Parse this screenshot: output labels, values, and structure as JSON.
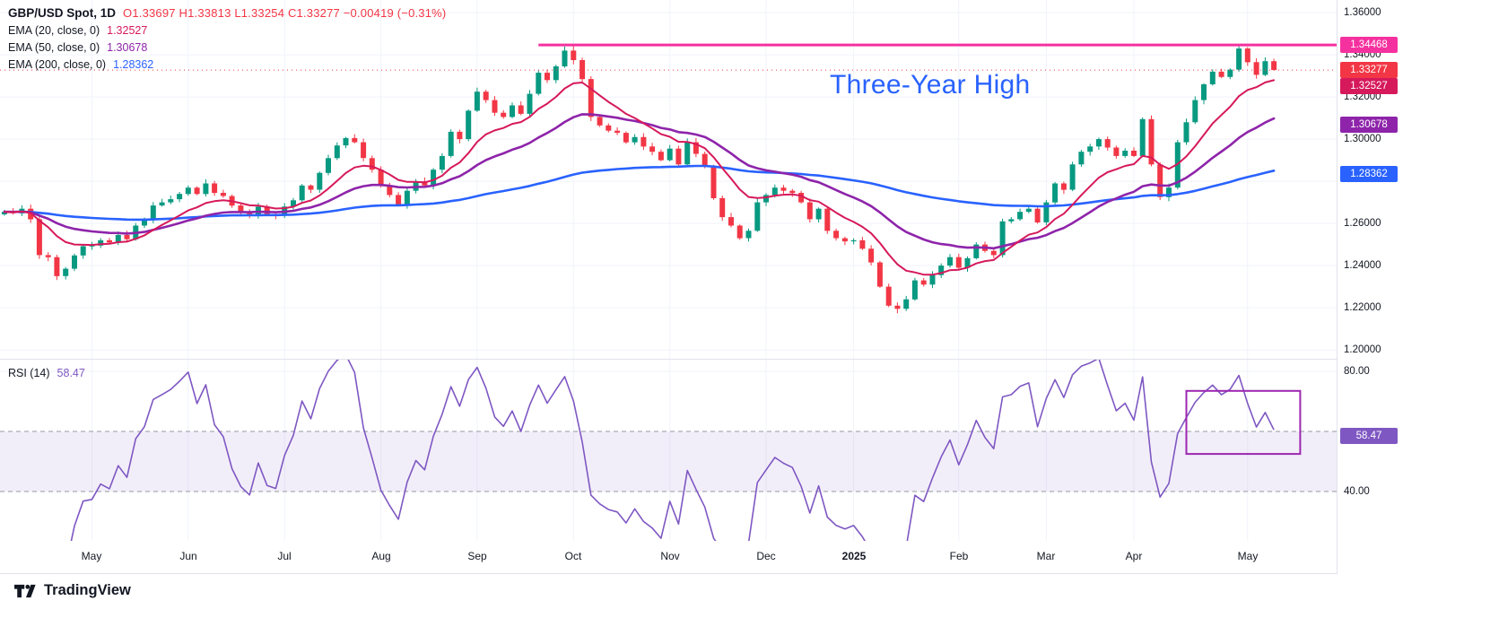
{
  "legend": {
    "title": "GBP/USD Spot, 1D",
    "ohlc": "O1.33697 H1.33813 L1.33254 C1.33277 −0.00419 (−0.31%)",
    "ohlc_color": "#f23645",
    "emas": [
      {
        "label": "EMA (20, close, 0)",
        "period": 20,
        "value": "1.32527",
        "color": "#d6195b"
      },
      {
        "label": "EMA (50, close, 0)",
        "period": 50,
        "value": "1.30678",
        "color": "#8e24aa"
      },
      {
        "label": "EMA (200, close, 0)",
        "period": 200,
        "value": "1.28362",
        "color": "#2962ff"
      }
    ]
  },
  "rsi_legend": {
    "label": "RSI (14)",
    "period": 14,
    "value": "58.47",
    "color": "#7e57c2"
  },
  "annotation": {
    "text": "Three-Year High",
    "color": "#2962ff"
  },
  "footer": {
    "brand": "TradingView"
  },
  "price_axis": {
    "labels": [
      {
        "text": "1.36000",
        "price": 1.36
      },
      {
        "text": "1.34000",
        "price": 1.34
      },
      {
        "text": "1.32000",
        "price": 1.32
      },
      {
        "text": "1.30000",
        "price": 1.3
      },
      {
        "text": "1.26000",
        "price": 1.26
      },
      {
        "text": "1.24000",
        "price": 1.24
      },
      {
        "text": "1.22000",
        "price": 1.22
      },
      {
        "text": "1.20000",
        "price": 1.2
      }
    ],
    "badges": [
      {
        "text": "1.34468",
        "price": 1.34468,
        "bg": "#f5319f",
        "name": "resistance-price-badge"
      },
      {
        "text": "1.33277",
        "price": 1.33277,
        "bg": "#f23645",
        "name": "last-price-badge"
      },
      {
        "text": "1.32527",
        "price": 1.32527,
        "bg": "#d6195b",
        "name": "ema20-price-badge"
      },
      {
        "text": "1.30678",
        "price": 1.30678,
        "bg": "#8e24aa",
        "name": "ema50-price-badge"
      },
      {
        "text": "1.28362",
        "price": 1.28362,
        "bg": "#2962ff",
        "name": "ema200-price-badge"
      }
    ]
  },
  "rsi_axis": {
    "labels": [
      {
        "text": "80.00",
        "value": 80
      },
      {
        "text": "40.00",
        "value": 40
      }
    ],
    "badge": {
      "text": "58.47",
      "value": 58.47,
      "bg": "#7e57c2"
    }
  },
  "time_axis": [
    {
      "label": "May",
      "index": 10
    },
    {
      "label": "Jun",
      "index": 21
    },
    {
      "label": "Jul",
      "index": 32
    },
    {
      "label": "Aug",
      "index": 43
    },
    {
      "label": "Sep",
      "index": 54
    },
    {
      "label": "Oct",
      "index": 65
    },
    {
      "label": "Nov",
      "index": 76
    },
    {
      "label": "Dec",
      "index": 87
    },
    {
      "label": "2025",
      "index": 97,
      "bold": true
    },
    {
      "label": "Feb",
      "index": 109
    },
    {
      "label": "Mar",
      "index": 119
    },
    {
      "label": "Apr",
      "index": 129
    },
    {
      "label": "May",
      "index": 142
    }
  ],
  "chart_data": [
    {
      "type": "candlestick",
      "title": "GBP/USD Spot, 1D",
      "interval_note": "each point ≈ 2 trading days, Apr 2024 – May 2025, values read from chart",
      "ylim": [
        1.1958,
        1.366
      ],
      "grid_prices": [
        1.36,
        1.34,
        1.32,
        1.3,
        1.28,
        1.26,
        1.24,
        1.22,
        1.2
      ],
      "up_color": "#089981",
      "down_color": "#f23645",
      "closes": [
        1.2655,
        1.2648,
        1.267,
        1.262,
        1.245,
        1.244,
        1.235,
        1.2385,
        1.2448,
        1.2492,
        1.2495,
        1.252,
        1.251,
        1.2545,
        1.2525,
        1.259,
        1.2615,
        1.2685,
        1.27,
        1.2715,
        1.274,
        1.277,
        1.274,
        1.279,
        1.2745,
        1.273,
        1.2685,
        1.2655,
        1.264,
        1.268,
        1.2645,
        1.264,
        1.268,
        1.271,
        1.278,
        1.276,
        1.284,
        1.291,
        1.297,
        1.3005,
        1.2985,
        1.291,
        1.2855,
        1.278,
        1.2735,
        1.269,
        1.2755,
        1.28,
        1.278,
        1.2855,
        1.292,
        1.3035,
        1.3,
        1.3135,
        1.3225,
        1.3185,
        1.3125,
        1.3105,
        1.316,
        1.312,
        1.3215,
        1.3315,
        1.328,
        1.3345,
        1.342,
        1.3375,
        1.3285,
        1.3105,
        1.3065,
        1.304,
        1.303,
        1.2985,
        1.301,
        1.2965,
        1.294,
        1.29,
        1.2955,
        1.288,
        1.2985,
        1.293,
        1.287,
        1.272,
        1.263,
        1.259,
        1.253,
        1.2565,
        1.27,
        1.2735,
        1.277,
        1.2755,
        1.2745,
        1.27,
        1.262,
        1.267,
        1.2565,
        1.253,
        1.2515,
        1.252,
        1.248,
        1.2415,
        1.23,
        1.221,
        1.2195,
        1.224,
        1.233,
        1.231,
        1.2355,
        1.24,
        1.244,
        1.239,
        1.2435,
        1.25,
        1.247,
        1.245,
        1.261,
        1.262,
        1.2655,
        1.267,
        1.2605,
        1.27,
        1.279,
        1.276,
        1.288,
        1.294,
        1.2965,
        1.3,
        1.296,
        1.292,
        1.2945,
        1.292,
        1.3095,
        1.288,
        1.2725,
        1.277,
        1.2985,
        1.308,
        1.3185,
        1.326,
        1.332,
        1.3295,
        1.333,
        1.343,
        1.3365,
        1.3305,
        1.337,
        1.33277
      ],
      "last_candle": {
        "open": 1.33697,
        "high": 1.33813,
        "low": 1.33254,
        "close": 1.33277
      },
      "resistance_line": {
        "price": 1.34468,
        "from_index": 61,
        "color": "#f5319f",
        "label": "1.34468"
      },
      "last_price_line": {
        "price": 1.33277,
        "color": "#f23645"
      }
    },
    {
      "type": "line",
      "name": "RSI (14)",
      "period": 14,
      "last_value": 58.47,
      "color": "#7e57c2",
      "bands": {
        "upper": 60,
        "lower": 40,
        "fill": "rgba(126,87,194,0.10)",
        "line_color": "#9598a1"
      },
      "scale": {
        "ref_values": [
          80,
          40
        ],
        "ref_y": [
          13,
          147
        ]
      },
      "axis_labels": [
        80,
        40
      ],
      "box_annotation": {
        "from_index": 135,
        "to_index": 148,
        "value_range": [
          52.5,
          73.5
        ],
        "color": "#9c27b0"
      }
    }
  ]
}
